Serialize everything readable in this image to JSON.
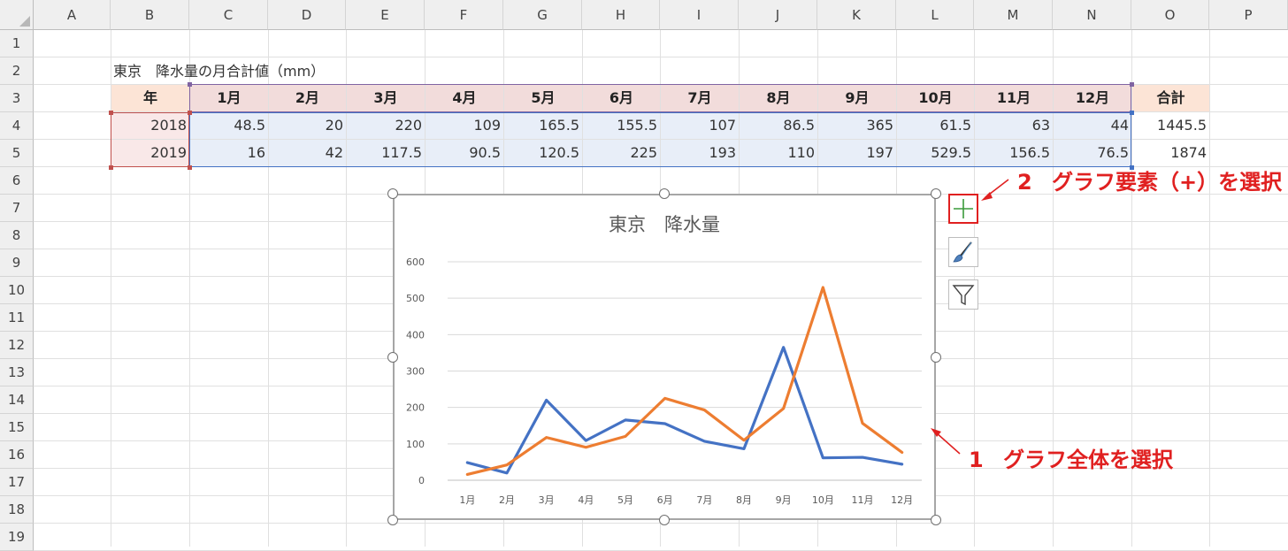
{
  "columns": [
    "A",
    "B",
    "C",
    "D",
    "E",
    "F",
    "G",
    "H",
    "I",
    "J",
    "K",
    "L",
    "M",
    "N",
    "O",
    "P"
  ],
  "rows": [
    "1",
    "2",
    "3",
    "4",
    "5",
    "6",
    "7",
    "8",
    "9",
    "10",
    "11",
    "12",
    "13",
    "14",
    "15",
    "16",
    "17",
    "18",
    "19"
  ],
  "sheet": {
    "title": "東京　降水量の月合計値（mm）",
    "header_year": "年",
    "months": [
      "1月",
      "2月",
      "3月",
      "4月",
      "5月",
      "6月",
      "7月",
      "8月",
      "9月",
      "10月",
      "11月",
      "12月"
    ],
    "header_total": "合計",
    "data": [
      {
        "year": "2018",
        "values": [
          "48.5",
          "20",
          "220",
          "109",
          "165.5",
          "155.5",
          "107",
          "86.5",
          "365",
          "61.5",
          "63",
          "44"
        ],
        "total": "1445.5"
      },
      {
        "year": "2019",
        "values": [
          "16",
          "42",
          "117.5",
          "90.5",
          "120.5",
          "225",
          "193",
          "110",
          "197",
          "529.5",
          "156.5",
          "76.5"
        ],
        "total": "1874"
      }
    ]
  },
  "chart_data": {
    "type": "line",
    "title": "東京　降水量",
    "categories": [
      "1月",
      "2月",
      "3月",
      "4月",
      "5月",
      "6月",
      "7月",
      "8月",
      "9月",
      "10月",
      "11月",
      "12月"
    ],
    "series": [
      {
        "values": [
          48.5,
          20,
          220,
          109,
          165.5,
          155.5,
          107,
          86.5,
          365,
          61.5,
          63,
          44
        ],
        "color": "#4472c4"
      },
      {
        "values": [
          16,
          42,
          117.5,
          90.5,
          120.5,
          225,
          193,
          110,
          197,
          529.5,
          156.5,
          76.5
        ],
        "color": "#ed7d31"
      }
    ],
    "ylim": [
      0,
      600
    ],
    "yticks": [
      "0",
      "100",
      "200",
      "300",
      "400",
      "500",
      "600"
    ],
    "grid": true,
    "legend": "none"
  },
  "chart_buttons": {
    "elements_icon": "plus-icon",
    "styles_icon": "brush-icon",
    "filter_icon": "funnel-icon"
  },
  "annotations": {
    "step1_number": "1",
    "step1_text": "グラフ全体を選択",
    "step2_number": "2",
    "step2_text": "グラフ要素（+）を選択",
    "color": "#e02020"
  }
}
